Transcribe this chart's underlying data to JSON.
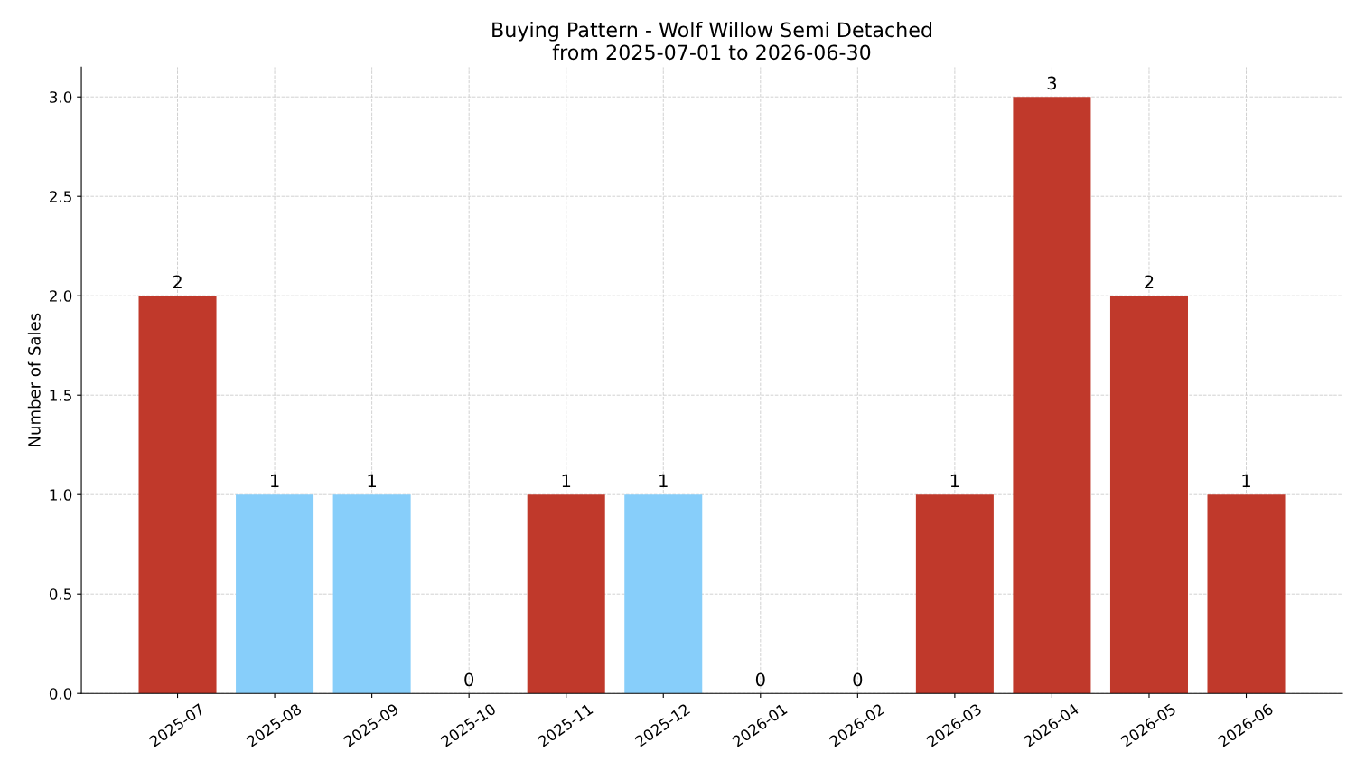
{
  "chart_data": {
    "type": "bar",
    "title": "Buying Pattern - Wolf Willow Semi Detached\nfrom 2025-07-01 to 2026-06-30",
    "ylabel": "Number of Sales",
    "categories": [
      "2025-07",
      "2025-08",
      "2025-09",
      "2025-10",
      "2025-11",
      "2025-12",
      "2026-01",
      "2026-02",
      "2026-03",
      "2026-04",
      "2026-05",
      "2026-06"
    ],
    "values": [
      2,
      1,
      1,
      0,
      1,
      1,
      0,
      0,
      1,
      3,
      2,
      1
    ],
    "colors": [
      "#c0392b",
      "#87cefa",
      "#87cefa",
      "#c0392b",
      "#c0392b",
      "#87cefa",
      "#c0392b",
      "#c0392b",
      "#c0392b",
      "#c0392b",
      "#c0392b",
      "#c0392b"
    ],
    "ylim": [
      0,
      3.15
    ],
    "yticks": [
      {
        "value": 0,
        "label": "0.0"
      },
      {
        "value": 0.5,
        "label": "0.5"
      },
      {
        "value": 1,
        "label": "1.0"
      },
      {
        "value": 1.5,
        "label": "1.5"
      },
      {
        "value": 2,
        "label": "2.0"
      },
      {
        "value": 2.5,
        "label": "2.5"
      },
      {
        "value": 3,
        "label": "3.0"
      }
    ],
    "grid": true,
    "data_labels": true
  }
}
